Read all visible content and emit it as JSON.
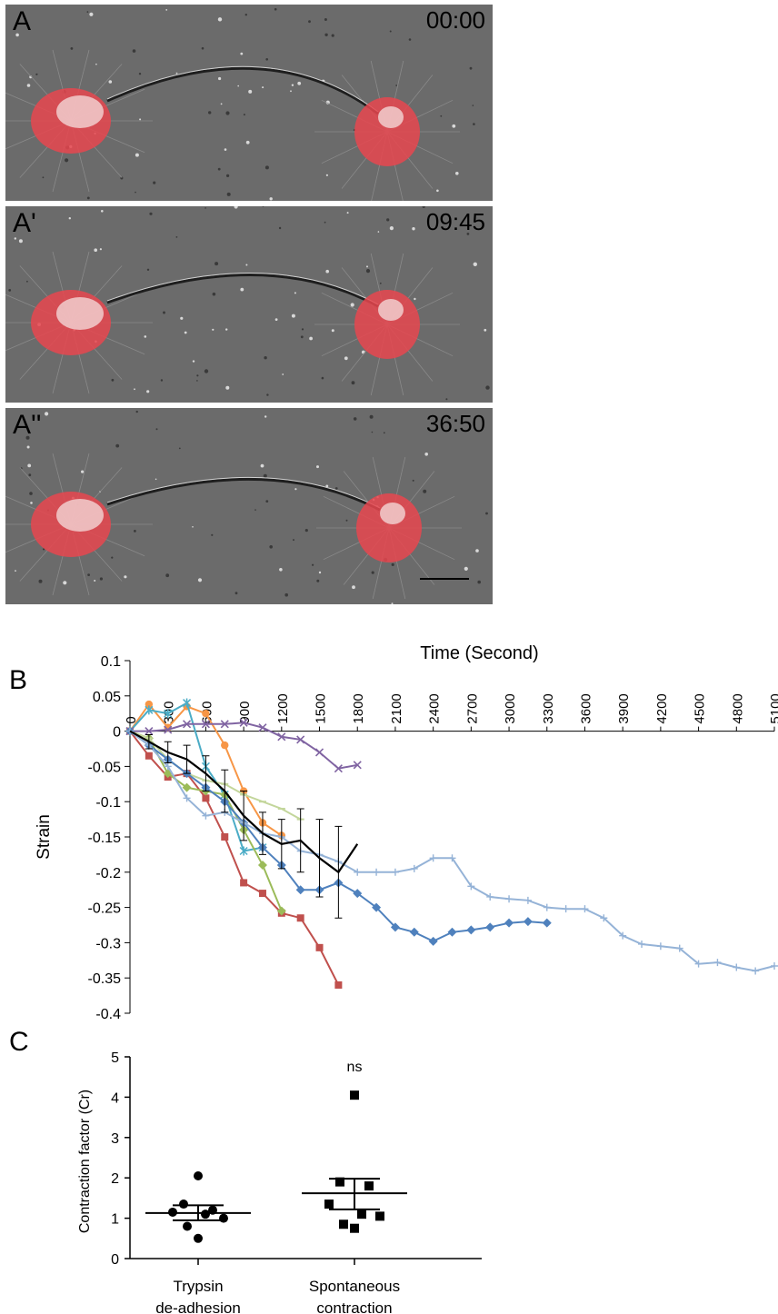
{
  "panel_a": {
    "frames": [
      {
        "label": "A",
        "time": "00:00"
      },
      {
        "label": "A'",
        "time": "09:45"
      },
      {
        "label": "A''",
        "time": "36:50"
      }
    ],
    "colors": {
      "background": "#6b6b6b",
      "cell_red": "#e8474f",
      "neurite": "#1e1e1e"
    }
  },
  "chart_data": [
    {
      "panel": "B",
      "type": "line",
      "xlabel": "Time (Second)",
      "ylabel": "Strain",
      "xlim": [
        0,
        5100
      ],
      "ylim": [
        -0.4,
        0.1
      ],
      "x_ticks": [
        0,
        300,
        600,
        900,
        1200,
        1500,
        1800,
        2100,
        2400,
        2700,
        3000,
        3300,
        3600,
        3900,
        4200,
        4500,
        4800,
        5100
      ],
      "y_ticks": [
        0.1,
        0.05,
        0,
        -0.05,
        -0.1,
        -0.15,
        -0.2,
        -0.25,
        -0.3,
        -0.35,
        -0.4
      ],
      "series": [
        {
          "color": "#c0504d",
          "marker": "square",
          "x": [
            0,
            150,
            300,
            450,
            600,
            750,
            900,
            1050,
            1200,
            1350,
            1500,
            1650
          ],
          "y": [
            0,
            -0.035,
            -0.065,
            -0.06,
            -0.095,
            -0.15,
            -0.215,
            -0.23,
            -0.258,
            -0.265,
            -0.307,
            -0.36
          ]
        },
        {
          "color": "#f79646",
          "marker": "circle",
          "x": [
            0,
            150,
            300,
            450,
            600,
            750,
            900,
            1050,
            1200
          ],
          "y": [
            0,
            0.038,
            0.005,
            0.035,
            0.025,
            -0.02,
            -0.085,
            -0.13,
            -0.148
          ]
        },
        {
          "color": "#4bacc6",
          "marker": "star",
          "x": [
            0,
            150,
            300,
            450,
            600,
            750,
            900,
            1050
          ],
          "y": [
            0,
            0.03,
            0.025,
            0.04,
            -0.05,
            -0.09,
            -0.17,
            -0.165
          ]
        },
        {
          "color": "#9bbb59",
          "marker": "diamond",
          "x": [
            0,
            150,
            300,
            450,
            600,
            750,
            900,
            1050,
            1200
          ],
          "y": [
            0,
            -0.01,
            -0.06,
            -0.08,
            -0.085,
            -0.09,
            -0.14,
            -0.19,
            -0.255
          ]
        },
        {
          "color": "#c3d69b",
          "marker": "dash",
          "x": [
            0,
            150,
            300,
            450,
            600,
            750,
            900,
            1050,
            1200,
            1350
          ],
          "y": [
            0,
            -0.01,
            -0.04,
            -0.06,
            -0.07,
            -0.075,
            -0.09,
            -0.1,
            -0.11,
            -0.125
          ]
        },
        {
          "color": "#8064a2",
          "marker": "x",
          "x": [
            0,
            150,
            300,
            450,
            600,
            750,
            900,
            1050,
            1200,
            1350,
            1500,
            1650,
            1800
          ],
          "y": [
            0,
            0,
            0.002,
            0.01,
            0.01,
            0.01,
            0.012,
            0.005,
            -0.008,
            -0.012,
            -0.03,
            -0.053,
            -0.048
          ]
        },
        {
          "color": "#4f81bd",
          "marker": "diamond",
          "x": [
            0,
            150,
            300,
            450,
            600,
            750,
            900,
            1050,
            1200,
            1350,
            1500,
            1650,
            1800,
            1950,
            2100,
            2250,
            2400,
            2550,
            2700,
            2850,
            3000,
            3150,
            3300
          ],
          "y": [
            0,
            -0.02,
            -0.04,
            -0.06,
            -0.08,
            -0.1,
            -0.13,
            -0.165,
            -0.19,
            -0.225,
            -0.225,
            -0.215,
            -0.23,
            -0.25,
            -0.278,
            -0.285,
            -0.298,
            -0.285,
            -0.282,
            -0.278,
            -0.272,
            -0.27,
            -0.272
          ]
        },
        {
          "color": "#95b3d7",
          "marker": "plus",
          "x": [
            0,
            150,
            300,
            450,
            600,
            750,
            900,
            1050,
            1200,
            1350,
            1500,
            1650,
            1800,
            1950,
            2100,
            2250,
            2400,
            2550,
            2700,
            2850,
            3000,
            3150,
            3300,
            3450,
            3600,
            3750,
            3900,
            4050,
            4200,
            4350,
            4500,
            4650,
            4800,
            4950,
            5100
          ],
          "y": [
            0,
            -0.02,
            -0.05,
            -0.095,
            -0.12,
            -0.115,
            -0.13,
            -0.145,
            -0.15,
            -0.17,
            -0.175,
            -0.185,
            -0.2,
            -0.2,
            -0.2,
            -0.195,
            -0.18,
            -0.18,
            -0.22,
            -0.235,
            -0.238,
            -0.24,
            -0.25,
            -0.252,
            -0.252,
            -0.265,
            -0.29,
            -0.302,
            -0.305,
            -0.308,
            -0.33,
            -0.328,
            -0.335,
            -0.34,
            -0.333
          ]
        },
        {
          "color": "#000000",
          "marker": "none",
          "error_bars": true,
          "x": [
            0,
            150,
            300,
            450,
            600,
            750,
            900,
            1050,
            1200,
            1350,
            1500,
            1650,
            1800
          ],
          "y": [
            0,
            -0.015,
            -0.03,
            -0.04,
            -0.06,
            -0.085,
            -0.12,
            -0.145,
            -0.16,
            -0.155,
            -0.18,
            -0.2,
            -0.16
          ],
          "err": [
            0,
            0.01,
            0.015,
            0.02,
            0.025,
            0.03,
            0.035,
            0.03,
            0.035,
            0.045,
            0.055,
            0.065,
            0
          ]
        }
      ]
    },
    {
      "panel": "C",
      "type": "scatter",
      "ylabel": "Contraction factor (Cr)",
      "ylim": [
        0,
        5
      ],
      "y_ticks": [
        0,
        1,
        2,
        3,
        4,
        5
      ],
      "categories": [
        "Trypsin\nde-adhesion",
        "Spontaneous\ncontraction"
      ],
      "annotation": "ns",
      "groups": [
        {
          "marker": "circle",
          "values": [
            2.05,
            1.35,
            1.2,
            1.15,
            1.1,
            1.0,
            0.8,
            0.5
          ],
          "mean": 1.13,
          "sem_low": 0.95,
          "sem_high": 1.32
        },
        {
          "marker": "square",
          "values": [
            4.05,
            1.9,
            1.8,
            1.35,
            1.1,
            1.05,
            0.85,
            0.75
          ],
          "mean": 1.62,
          "sem_low": 1.22,
          "sem_high": 1.98
        }
      ]
    }
  ]
}
